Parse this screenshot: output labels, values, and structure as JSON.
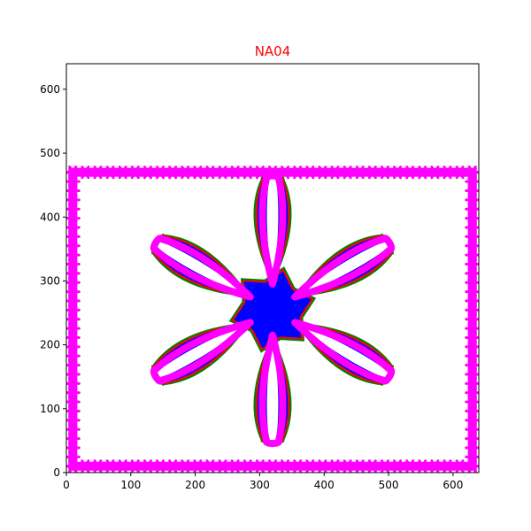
{
  "chart_data": {
    "type": "line",
    "title": "NA04",
    "title_color": "#ff0000",
    "xlabel": "",
    "ylabel": "",
    "xlim": [
      0,
      640
    ],
    "ylim": [
      0,
      640
    ],
    "x_ticks": [
      0,
      100,
      200,
      300,
      400,
      500,
      600
    ],
    "y_ticks": [
      0,
      100,
      200,
      300,
      400,
      500,
      600
    ],
    "grid": false,
    "flower": {
      "center": [
        320,
        255
      ],
      "petal_count": 6,
      "petal_angles_deg": [
        90,
        150,
        210,
        270,
        330,
        30
      ],
      "petal_tip_radius": 205,
      "petal_base_radius": 40,
      "layers": [
        {
          "color": "#008000",
          "half_width": 30
        },
        {
          "color": "#ff0000",
          "half_width": 27
        },
        {
          "color": "#0000ff",
          "half_width": 24
        },
        {
          "color": "#ff00ff",
          "outline": true
        }
      ]
    },
    "border": {
      "color": "#ff00ff",
      "x_range": [
        10,
        630
      ],
      "y_range": [
        10,
        470
      ],
      "markers_per_side": 32
    }
  }
}
